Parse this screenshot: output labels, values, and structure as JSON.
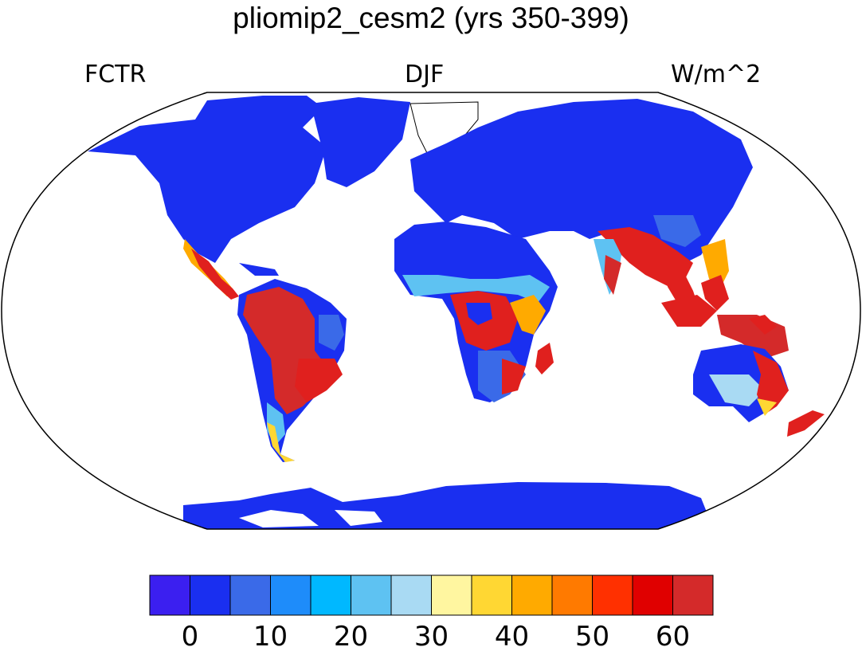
{
  "title": "pliomip2_cesm2 (yrs 350-399)",
  "left_label": "FCTR",
  "center_label": "DJF",
  "right_label": "W/m^2",
  "colorbar": {
    "colors": [
      "#3b1ff0",
      "#1a2ff0",
      "#3a6ae8",
      "#1e8cfa",
      "#00b8ff",
      "#5ec2f2",
      "#a9daf3",
      "#fff6a0",
      "#ffd733",
      "#ffaa00",
      "#ff7a00",
      "#ff3000",
      "#e00000",
      "#d42a2a"
    ],
    "tick_labels": [
      "0",
      "10",
      "20",
      "30",
      "40",
      "50",
      "60"
    ]
  },
  "map_colors": {
    "ocean": "#ffffff",
    "low": "#1a2ff0",
    "mid_low": "#3a6ae8",
    "light_blue": "#5ec2f2",
    "yellow": "#ffd733",
    "orange": "#ffaa00",
    "high": "#e0201e",
    "high_dark": "#d42a2a"
  }
}
